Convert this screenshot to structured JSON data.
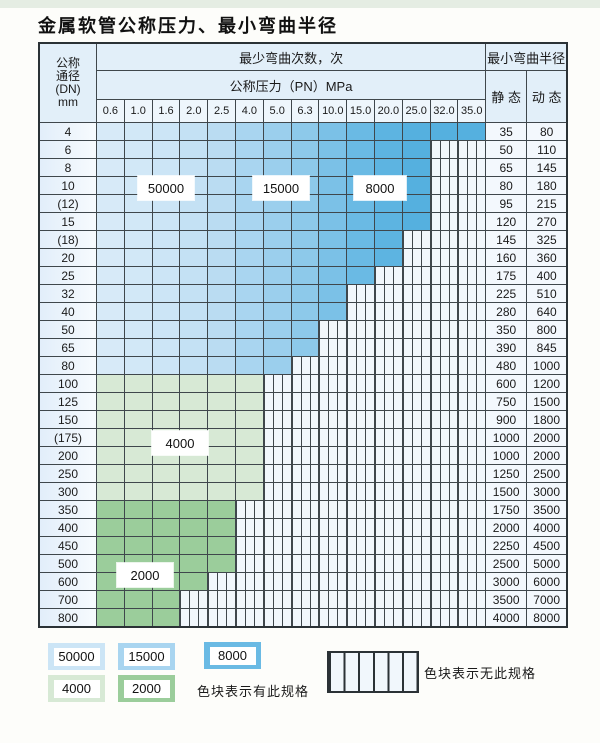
{
  "title": "金属软管公称压力、最小弯曲半径",
  "table": {
    "header": {
      "dn_label_lines": [
        "公称",
        "通径",
        "(DN)",
        "mm"
      ],
      "cycles_label": "最少弯曲次数，次",
      "radius_label": "最小弯曲半径",
      "pressure_label": "公称压力（PN）MPa",
      "static_label": "静 态",
      "dynamic_label": "动 态",
      "pressures": [
        "0.6",
        "1.0",
        "1.6",
        "2.0",
        "2.5",
        "4.0",
        "5.0",
        "6.3",
        "10.0",
        "15.0",
        "20.0",
        "25.0",
        "32.0",
        "35.0"
      ]
    },
    "rows": [
      {
        "dn": "4",
        "colored": 14,
        "zone": "blue",
        "static": "35",
        "dynamic": "80"
      },
      {
        "dn": "6",
        "colored": 12,
        "zone": "blue",
        "static": "50",
        "dynamic": "110"
      },
      {
        "dn": "8",
        "colored": 12,
        "zone": "blue",
        "static": "65",
        "dynamic": "145"
      },
      {
        "dn": "10",
        "colored": 12,
        "zone": "blue",
        "static": "80",
        "dynamic": "180"
      },
      {
        "dn": "(12)",
        "colored": 12,
        "zone": "blue",
        "static": "95",
        "dynamic": "215"
      },
      {
        "dn": "15",
        "colored": 12,
        "zone": "blue",
        "static": "120",
        "dynamic": "270"
      },
      {
        "dn": "(18)",
        "colored": 11,
        "zone": "blue",
        "static": "145",
        "dynamic": "325"
      },
      {
        "dn": "20",
        "colored": 11,
        "zone": "blue",
        "static": "160",
        "dynamic": "360"
      },
      {
        "dn": "25",
        "colored": 10,
        "zone": "blue",
        "static": "175",
        "dynamic": "400"
      },
      {
        "dn": "32",
        "colored": 9,
        "zone": "blue",
        "static": "225",
        "dynamic": "510"
      },
      {
        "dn": "40",
        "colored": 9,
        "zone": "blue",
        "static": "280",
        "dynamic": "640"
      },
      {
        "dn": "50",
        "colored": 8,
        "zone": "blue",
        "static": "350",
        "dynamic": "800"
      },
      {
        "dn": "65",
        "colored": 8,
        "zone": "blue",
        "static": "390",
        "dynamic": "845"
      },
      {
        "dn": "80",
        "colored": 7,
        "zone": "blue",
        "static": "480",
        "dynamic": "1000"
      },
      {
        "dn": "100",
        "colored": 6,
        "zone": "green4000",
        "static": "600",
        "dynamic": "1200"
      },
      {
        "dn": "125",
        "colored": 6,
        "zone": "green4000",
        "static": "750",
        "dynamic": "1500"
      },
      {
        "dn": "150",
        "colored": 6,
        "zone": "green4000",
        "static": "900",
        "dynamic": "1800"
      },
      {
        "dn": "(175)",
        "colored": 6,
        "zone": "green4000",
        "static": "1000",
        "dynamic": "2000"
      },
      {
        "dn": "200",
        "colored": 6,
        "zone": "green4000",
        "static": "1000",
        "dynamic": "2000"
      },
      {
        "dn": "250",
        "colored": 6,
        "zone": "green4000",
        "static": "1250",
        "dynamic": "2500"
      },
      {
        "dn": "300",
        "colored": 6,
        "zone": "green4000",
        "static": "1500",
        "dynamic": "3000"
      },
      {
        "dn": "350",
        "colored": 5,
        "zone": "green2000",
        "static": "1750",
        "dynamic": "3500"
      },
      {
        "dn": "400",
        "colored": 5,
        "zone": "green2000",
        "static": "2000",
        "dynamic": "4000"
      },
      {
        "dn": "450",
        "colored": 5,
        "zone": "green2000",
        "static": "2250",
        "dynamic": "4500"
      },
      {
        "dn": "500",
        "colored": 5,
        "zone": "green2000",
        "static": "2500",
        "dynamic": "5000"
      },
      {
        "dn": "600",
        "colored": 4,
        "zone": "green2000",
        "static": "3000",
        "dynamic": "6000"
      },
      {
        "dn": "700",
        "colored": 3,
        "zone": "green2000",
        "static": "3500",
        "dynamic": "7000"
      },
      {
        "dn": "800",
        "colored": 3,
        "zone": "green2000",
        "static": "4000",
        "dynamic": "8000"
      }
    ],
    "colors": {
      "blue_columns": [
        "#d7eaf8",
        "#d2e8f7",
        "#cce5f6",
        "#c4e1f4",
        "#badcf2",
        "#a9d5f0",
        "#9bcfed",
        "#8dc9ea",
        "#7bc1e7",
        "#6abae4",
        "#5db4e1",
        "#55b0df",
        "#55b0df",
        "#55b0df"
      ],
      "green_4000": "#d7e9d5",
      "green_2000": "#9bcd9b"
    },
    "cycle_labels": [
      {
        "text": "50000"
      },
      {
        "text": "15000"
      },
      {
        "text": "8000"
      },
      {
        "text": "4000"
      },
      {
        "text": "2000"
      }
    ]
  },
  "legend": {
    "swatches": [
      {
        "label": "50000",
        "color": "#cce5f6"
      },
      {
        "label": "15000",
        "color": "#a9d5f0"
      },
      {
        "label": "8000",
        "color": "#6abae4"
      },
      {
        "label": "4000",
        "color": "#d7e9d5"
      },
      {
        "label": "2000",
        "color": "#9bcd9b"
      }
    ],
    "has_spec_text": "色块表示有此规格",
    "no_spec_text": "色块表示无此规格"
  }
}
